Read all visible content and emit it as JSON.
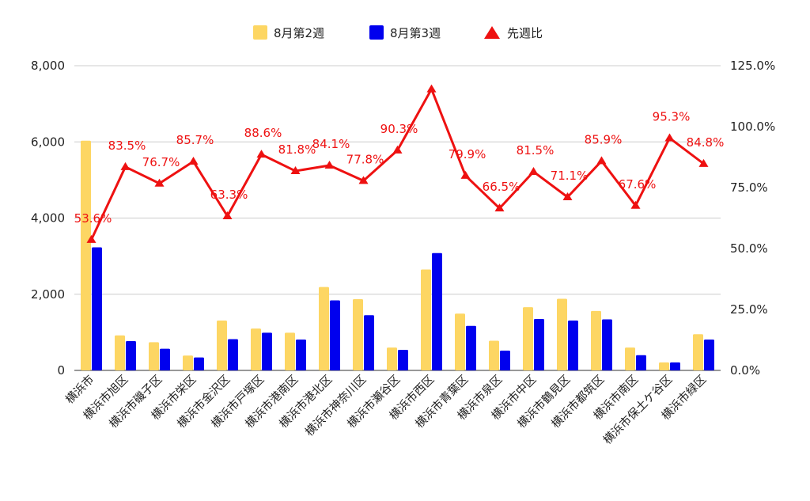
{
  "chart_data": {
    "type": "bar",
    "categories": [
      "横浜市",
      "横浜市旭区",
      "横浜市磯子区",
      "横浜市栄区",
      "横浜市金沢区",
      "横浜市戸塚区",
      "横浜市港南区",
      "横浜市港北区",
      "横浜市神奈川区",
      "横浜市瀬谷区",
      "横浜市西区",
      "横浜市青葉区",
      "横浜市泉区",
      "横浜市中区",
      "横浜市鶴見区",
      "横浜市都筑区",
      "横浜市南区",
      "横浜市保土ケ谷区",
      "横浜市緑区"
    ],
    "series": [
      {
        "name": "8月第2週",
        "type": "bar",
        "axis": "left",
        "color": "#fdd663",
        "values": [
          6030,
          920,
          740,
          390,
          1310,
          1100,
          990,
          2190,
          1870,
          600,
          2650,
          1490,
          780,
          1660,
          1880,
          1560,
          600,
          210,
          950
        ]
      },
      {
        "name": "8月第3週",
        "type": "bar",
        "axis": "left",
        "color": "#0000ee",
        "values": [
          3230,
          770,
          570,
          340,
          820,
          990,
          810,
          1840,
          1450,
          540,
          3080,
          1170,
          520,
          1350,
          1310,
          1340,
          400,
          210,
          810
        ]
      },
      {
        "name": "先週比",
        "type": "line",
        "axis": "right",
        "color": "#ee1111",
        "marker": "triangle",
        "values": [
          53.6,
          83.5,
          76.7,
          85.7,
          63.3,
          88.6,
          81.8,
          84.1,
          77.8,
          90.3,
          115.4,
          79.9,
          66.5,
          81.5,
          71.1,
          85.9,
          67.6,
          95.3,
          84.8
        ],
        "labels": [
          "53.6%",
          "83.5%",
          "76.7%",
          "85.7%",
          "63.3%",
          "88.6%",
          "81.8%",
          "84.1%",
          "77.8%",
          "90.3%",
          "",
          "79.9%",
          "66.5%",
          "81.5%",
          "71.1%",
          "85.9%",
          "67.6%",
          "95.3%",
          "84.8%"
        ]
      }
    ],
    "ylim": [
      0,
      8000
    ],
    "y_ticks": [
      "0",
      "2,000",
      "4,000",
      "6,000",
      "8,000"
    ],
    "y2lim": [
      0,
      125
    ],
    "y2_ticks": [
      "0.0%",
      "25.0%",
      "50.0%",
      "75.0%",
      "100.0%",
      "125.0%"
    ],
    "grid": true,
    "legend_position": "top-center"
  }
}
